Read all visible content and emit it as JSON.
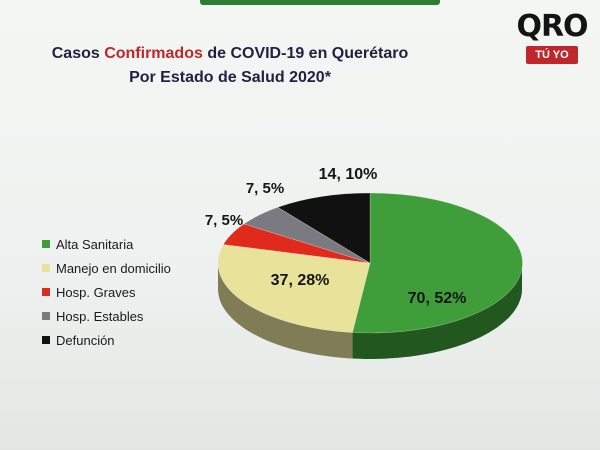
{
  "title": {
    "prefix": "Casos ",
    "highlight": "Confirmados",
    "suffix": " de COVID-19 en Querétaro",
    "line2": "Por Estado de Salud 2020*"
  },
  "logo": {
    "main": "QRO",
    "tag": "TÚ YO"
  },
  "colors": {
    "title": "#1e2240",
    "highlight": "#c0272d"
  },
  "chart_data": {
    "type": "pie",
    "style": "3d",
    "series": [
      {
        "name": "Alta Sanitaria",
        "value": 70,
        "label": "70, 52%",
        "color": "#3f9e3a"
      },
      {
        "name": "Manejo en domicilio",
        "value": 37,
        "label": "37, 28%",
        "color": "#e8e29a"
      },
      {
        "name": "Hosp. Graves",
        "value": 7,
        "label": "7, 5%",
        "color": "#e02a1c"
      },
      {
        "name": "Hosp. Estables",
        "value": 7,
        "label": "7, 5%",
        "color": "#7a7a80"
      },
      {
        "name": "Defunción",
        "value": 14,
        "label": "14, 10%",
        "color": "#111111"
      }
    ],
    "legend_position": "left"
  }
}
